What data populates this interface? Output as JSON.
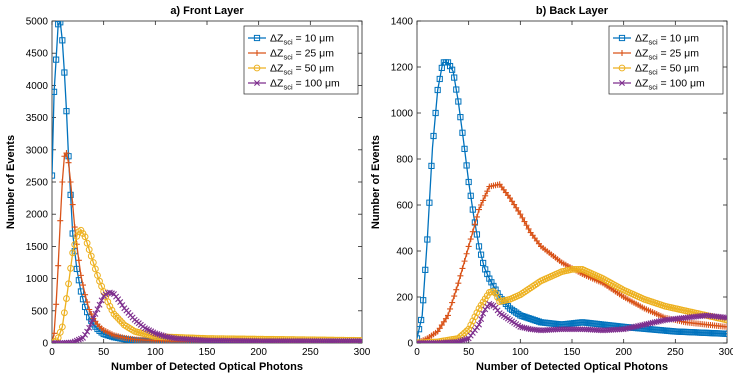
{
  "chart_data": [
    {
      "type": "line",
      "title": "a) Front Layer",
      "xlabel": "Number of Detected Optical Photons",
      "ylabel": "Number of Events",
      "xlim": [
        0,
        300
      ],
      "ylim": [
        0,
        5000
      ],
      "xticks": [
        0,
        50,
        100,
        150,
        200,
        250,
        300
      ],
      "yticks": [
        0,
        500,
        1000,
        1500,
        2000,
        2500,
        3000,
        3500,
        4000,
        4500,
        5000
      ],
      "legend_position": "top-right",
      "grid": false,
      "series": [
        {
          "name": "ΔZ_sci = 10 μm",
          "color": "#0072BD",
          "marker": "square",
          "x": [
            0,
            2,
            4,
            6,
            8,
            10,
            12,
            14,
            16,
            18,
            20,
            24,
            28,
            32,
            36,
            40,
            45,
            50,
            60,
            70,
            80,
            100,
            150,
            200,
            300
          ],
          "y": [
            2600,
            3900,
            4400,
            4950,
            4980,
            4700,
            4200,
            3600,
            2900,
            2300,
            1700,
            1150,
            800,
            560,
            400,
            290,
            200,
            140,
            90,
            60,
            40,
            25,
            15,
            10,
            10
          ]
        },
        {
          "name": "ΔZ_sci = 25 μm",
          "color": "#D95319",
          "marker": "plus",
          "x": [
            0,
            2,
            4,
            6,
            8,
            10,
            12,
            14,
            16,
            18,
            20,
            22,
            25,
            28,
            32,
            36,
            40,
            45,
            50,
            60,
            70,
            80,
            100,
            150,
            200,
            300
          ],
          "y": [
            0,
            150,
            600,
            1200,
            1900,
            2500,
            2900,
            2950,
            2800,
            2500,
            2150,
            1800,
            1400,
            1050,
            750,
            520,
            380,
            270,
            200,
            120,
            80,
            55,
            35,
            20,
            15,
            10
          ]
        },
        {
          "name": "ΔZ_sci = 50 μm",
          "color": "#EDB120",
          "marker": "circle",
          "x": [
            0,
            5,
            10,
            15,
            20,
            25,
            28,
            32,
            36,
            40,
            45,
            50,
            55,
            60,
            70,
            80,
            100,
            150,
            200,
            250,
            300
          ],
          "y": [
            0,
            40,
            250,
            800,
            1400,
            1720,
            1750,
            1650,
            1450,
            1250,
            1000,
            800,
            600,
            450,
            280,
            180,
            100,
            70,
            60,
            50,
            40
          ]
        },
        {
          "name": "ΔZ_sci = 100 μm",
          "color": "#7E2F8E",
          "marker": "x",
          "x": [
            0,
            10,
            20,
            30,
            35,
            40,
            45,
            50,
            55,
            60,
            65,
            70,
            80,
            90,
            100,
            110,
            120,
            150,
            200,
            250,
            300
          ],
          "y": [
            0,
            0,
            10,
            80,
            200,
            380,
            560,
            730,
            790,
            760,
            660,
            540,
            360,
            230,
            150,
            100,
            70,
            40,
            30,
            30,
            30
          ]
        }
      ]
    },
    {
      "type": "line",
      "title": "b) Back Layer",
      "xlabel": "Number of Detected Optical Photons",
      "ylabel": "Number of Events",
      "xlim": [
        0,
        300
      ],
      "ylim": [
        0,
        1400
      ],
      "xticks": [
        0,
        50,
        100,
        150,
        200,
        250,
        300
      ],
      "yticks": [
        0,
        200,
        400,
        600,
        800,
        1000,
        1200,
        1400
      ],
      "legend_position": "top-right",
      "grid": false,
      "series": [
        {
          "name": "ΔZ_sci = 10 μm",
          "color": "#0072BD",
          "marker": "square",
          "x": [
            0,
            5,
            10,
            15,
            20,
            25,
            30,
            35,
            40,
            45,
            50,
            55,
            60,
            65,
            70,
            80,
            90,
            100,
            120,
            140,
            160,
            180,
            200,
            250,
            300
          ],
          "y": [
            20,
            120,
            450,
            850,
            1100,
            1220,
            1220,
            1180,
            1050,
            880,
            700,
            550,
            420,
            330,
            280,
            200,
            150,
            120,
            90,
            80,
            90,
            80,
            70,
            50,
            40
          ]
        },
        {
          "name": "ΔZ_sci = 25 μm",
          "color": "#D95319",
          "marker": "plus",
          "x": [
            0,
            10,
            20,
            30,
            40,
            50,
            60,
            70,
            80,
            90,
            100,
            110,
            120,
            140,
            160,
            180,
            200,
            220,
            240,
            260,
            280,
            300
          ],
          "y": [
            0,
            20,
            50,
            120,
            260,
            420,
            580,
            680,
            690,
            630,
            560,
            480,
            420,
            350,
            300,
            260,
            200,
            150,
            110,
            90,
            80,
            70
          ]
        },
        {
          "name": "ΔZ_sci = 50 μm",
          "color": "#EDB120",
          "marker": "circle",
          "x": [
            0,
            20,
            40,
            50,
            60,
            70,
            75,
            80,
            90,
            100,
            110,
            120,
            130,
            140,
            150,
            160,
            170,
            180,
            200,
            220,
            240,
            260,
            280,
            300
          ],
          "y": [
            0,
            5,
            20,
            60,
            150,
            220,
            225,
            180,
            190,
            210,
            240,
            270,
            290,
            310,
            320,
            320,
            300,
            280,
            230,
            190,
            160,
            140,
            120,
            100
          ]
        },
        {
          "name": "ΔZ_sci = 100 μm",
          "color": "#7E2F8E",
          "marker": "x",
          "x": [
            0,
            20,
            40,
            50,
            60,
            65,
            70,
            75,
            80,
            90,
            100,
            110,
            120,
            140,
            160,
            180,
            200,
            220,
            240,
            260,
            280,
            300
          ],
          "y": [
            0,
            0,
            5,
            20,
            80,
            140,
            170,
            160,
            130,
            100,
            70,
            60,
            55,
            60,
            60,
            55,
            60,
            80,
            100,
            110,
            120,
            110
          ]
        }
      ]
    }
  ]
}
